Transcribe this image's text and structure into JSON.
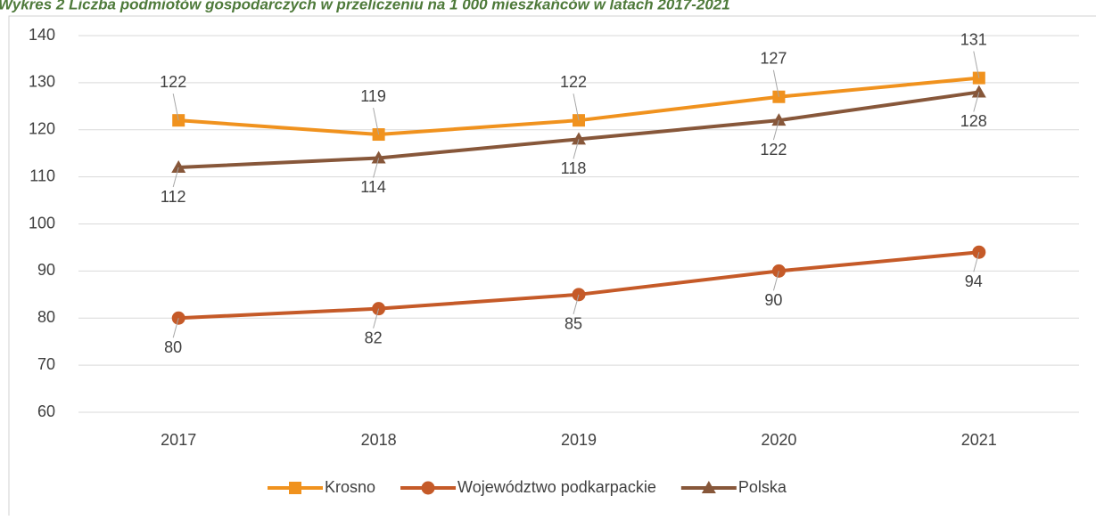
{
  "chart_data": {
    "type": "line",
    "title": "Wykres 2 Liczba podmiotów gospodarczych w przeliczeniu na 1 000 mieszkańców w latach 2017-2021",
    "categories": [
      "2017",
      "2018",
      "2019",
      "2020",
      "2021"
    ],
    "series": [
      {
        "name": "Krosno",
        "color": "#f0921e",
        "marker": "square",
        "label_position": "above",
        "values": [
          122,
          119,
          122,
          127,
          131
        ]
      },
      {
        "name": "Województwo podkarpackie",
        "color": "#c55a28",
        "marker": "circle",
        "label_position": "below",
        "values": [
          80,
          82,
          85,
          90,
          94
        ]
      },
      {
        "name": "Polska",
        "color": "#87573a",
        "marker": "triangle",
        "label_position": "below",
        "values": [
          112,
          114,
          118,
          122,
          128
        ]
      }
    ],
    "ylim": [
      60,
      140
    ],
    "yticks": [
      60,
      70,
      80,
      90,
      100,
      110,
      120,
      130,
      140
    ],
    "grid": true,
    "legend": "bottom"
  }
}
